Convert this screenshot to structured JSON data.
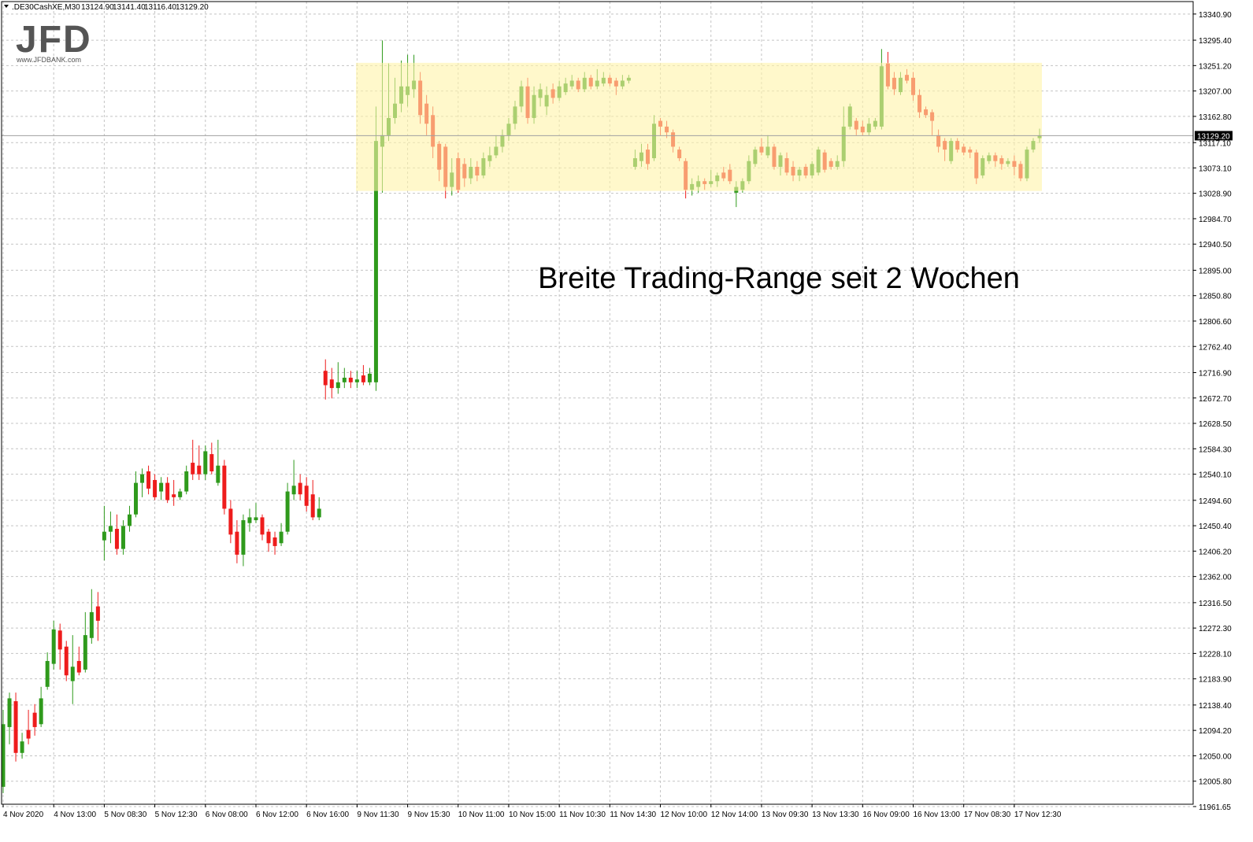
{
  "header": {
    "symbol": ".DE30CashXE,M30",
    "ohlc": [
      "13124.90",
      "13141.40",
      "13116.40",
      "13129.20"
    ]
  },
  "logo": {
    "text": "JFD",
    "url": "www.JFDBANK.com"
  },
  "chart_data": {
    "type": "candlestick",
    "annotation": "Breite Trading-Range seit 2 Wochen",
    "highlight_range": {
      "low": 13033,
      "high": 13256,
      "color": "#fff3a8"
    },
    "current_price": {
      "value": 13129.2,
      "label": "13129.20"
    },
    "up_color": "#2f9a1c",
    "down_color": "#ee1c1c",
    "grid": true,
    "ylim": [
      11965.7,
      13362.6
    ],
    "yticks": [
      {
        "value": 13340.9,
        "label": "13340.90"
      },
      {
        "value": 13295.4,
        "label": "13295.40"
      },
      {
        "value": 13251.2,
        "label": "13251.20"
      },
      {
        "value": 13207,
        "label": "13207.00"
      },
      {
        "value": 13162.8,
        "label": "13162.80"
      },
      {
        "value": 13117.1,
        "label": "13117.10"
      },
      {
        "value": 13073.1,
        "label": "13073.10"
      },
      {
        "value": 13028.9,
        "label": "13028.90"
      },
      {
        "value": 12984.7,
        "label": "12984.70"
      },
      {
        "value": 12940.5,
        "label": "12940.50"
      },
      {
        "value": 12895,
        "label": "12895.00"
      },
      {
        "value": 12850.8,
        "label": "12850.80"
      },
      {
        "value": 12806.6,
        "label": "12806.60"
      },
      {
        "value": 12762.4,
        "label": "12762.40"
      },
      {
        "value": 12716.9,
        "label": "12716.90"
      },
      {
        "value": 12672.7,
        "label": "12672.70"
      },
      {
        "value": 12628.5,
        "label": "12628.50"
      },
      {
        "value": 12584.3,
        "label": "12584.30"
      },
      {
        "value": 12540.1,
        "label": "12540.10"
      },
      {
        "value": 12494.6,
        "label": "12494.60"
      },
      {
        "value": 12450.4,
        "label": "12450.40"
      },
      {
        "value": 12406.2,
        "label": "12406.20"
      },
      {
        "value": 12362,
        "label": "12362.00"
      },
      {
        "value": 12316.5,
        "label": "12316.50"
      },
      {
        "value": 12272.3,
        "label": "12272.30"
      },
      {
        "value": 12228.1,
        "label": "12228.10"
      },
      {
        "value": 12183.9,
        "label": "12183.90"
      },
      {
        "value": 12138.4,
        "label": "12138.40"
      },
      {
        "value": 12094.2,
        "label": "12094.20"
      },
      {
        "value": 12050,
        "label": "12050.00"
      },
      {
        "value": 12005.8,
        "label": "12005.80"
      },
      {
        "value": 11961.65,
        "label": "11961.65"
      }
    ],
    "categories": [
      "4 Nov 2020",
      null,
      null,
      null,
      null,
      null,
      null,
      null,
      "4 Nov 13:00",
      null,
      null,
      null,
      null,
      null,
      null,
      null,
      "5 Nov 08:30",
      null,
      null,
      null,
      null,
      null,
      null,
      null,
      "5 Nov 12:30",
      null,
      null,
      null,
      null,
      null,
      null,
      null,
      "6 Nov 08:00",
      null,
      null,
      null,
      null,
      null,
      null,
      null,
      "6 Nov 12:00",
      null,
      null,
      null,
      null,
      null,
      null,
      null,
      "6 Nov 16:00",
      null,
      null,
      null,
      null,
      null,
      null,
      null,
      "9 Nov 11:30",
      null,
      null,
      null,
      null,
      null,
      null,
      null,
      "9 Nov 15:30",
      null,
      null,
      null,
      null,
      null,
      null,
      null,
      "10 Nov 11:00",
      null,
      null,
      null,
      null,
      null,
      null,
      null,
      "10 Nov 15:00",
      null,
      null,
      null,
      null,
      null,
      null,
      null,
      "11 Nov 10:30",
      null,
      null,
      null,
      null,
      null,
      null,
      null,
      "11 Nov 14:30",
      null,
      null,
      null,
      null,
      null,
      null,
      null,
      "12 Nov 10:00",
      null,
      null,
      null,
      null,
      null,
      null,
      null,
      "12 Nov 14:00",
      null,
      null,
      null,
      null,
      null,
      null,
      null,
      "13 Nov 09:30",
      null,
      null,
      null,
      null,
      null,
      null,
      null,
      "13 Nov 13:30",
      null,
      null,
      null,
      null,
      null,
      null,
      null,
      "16 Nov 09:00",
      null,
      null,
      null,
      null,
      null,
      null,
      null,
      "16 Nov 13:00",
      null,
      null,
      null,
      null,
      null,
      null,
      null,
      "17 Nov 08:30",
      null,
      null,
      null,
      null,
      null,
      null,
      null,
      "17 Nov 12:30",
      null,
      null,
      null,
      null
    ],
    "open": [
      11996,
      12100,
      12145,
      12055,
      12095,
      12125,
      12105,
      12170,
      12210,
      12268,
      12240,
      12180,
      12215,
      12200,
      12255,
      12310,
      12425,
      12440,
      12445,
      12410,
      12450,
      12470,
      12525,
      12545,
      12530,
      12510,
      12525,
      12505,
      12500,
      12510,
      12560,
      12555,
      12540,
      12575,
      12525,
      12555,
      12480,
      12440,
      12400,
      12455,
      12460,
      12465,
      12440,
      12430,
      12420,
      12440,
      12505,
      12525,
      12520,
      12505,
      12465,
      12720,
      12705,
      12690,
      12700,
      12708,
      12700,
      12712,
      12700,
      12700,
      13110,
      13130,
      13160,
      13185,
      13200,
      13210,
      13225,
      13185,
      13165,
      13115,
      13110,
      13040,
      13090,
      13080,
      13055,
      13075,
      13060,
      13085,
      13095,
      13110,
      13130,
      13150,
      13180,
      13215,
      13160,
      13195,
      13180,
      13210,
      13195,
      13205,
      13215,
      13225,
      13210,
      13230,
      13215,
      13220,
      13230,
      13225,
      13215,
      13225,
      13075,
      13085,
      13105,
      13090,
      13155,
      13145,
      13135,
      13105,
      13085,
      13035,
      13040,
      13050,
      13045,
      13050,
      13065,
      13070,
      13030,
      13035,
      13050,
      13080,
      13110,
      13095,
      13110,
      13075,
      13090,
      13075,
      13060,
      13075,
      13060,
      13065,
      13100,
      13085,
      13075,
      13085,
      13145,
      13155,
      13145,
      13135,
      13145,
      13145,
      13255,
      13230,
      13205,
      13235,
      13230,
      13200,
      13175,
      13170,
      13130,
      13120,
      13085,
      13120,
      13110,
      13105,
      13100,
      13060,
      13085,
      13095,
      13090,
      13080,
      13085,
      13080,
      13055,
      13105,
      13124.9
    ],
    "high": [
      12130,
      12160,
      12160,
      12090,
      12130,
      12140,
      12170,
      12230,
      12285,
      12280,
      12250,
      12260,
      12240,
      12300,
      12340,
      12335,
      12485,
      12475,
      12470,
      12460,
      12485,
      12545,
      12550,
      12555,
      12540,
      12535,
      12535,
      12530,
      12515,
      12555,
      12600,
      12590,
      12590,
      12595,
      12600,
      12565,
      12495,
      12460,
      12470,
      12480,
      12490,
      12470,
      12445,
      12440,
      12455,
      12525,
      12565,
      12540,
      12535,
      12530,
      12500,
      12740,
      12725,
      12735,
      12725,
      12720,
      12720,
      12730,
      12725,
      13180,
      13295,
      13255,
      13230,
      13260,
      13270,
      13270,
      13240,
      13200,
      13180,
      13120,
      13115,
      13090,
      13100,
      13090,
      13090,
      13085,
      13100,
      13110,
      13130,
      13140,
      13160,
      13190,
      13225,
      13230,
      13215,
      13220,
      13215,
      13220,
      13225,
      13230,
      13235,
      13230,
      13240,
      13235,
      13245,
      13240,
      13235,
      13230,
      13235,
      13235,
      13105,
      13115,
      13115,
      13165,
      13160,
      13155,
      13140,
      13110,
      13090,
      13055,
      13060,
      13055,
      13070,
      13065,
      13075,
      13080,
      13050,
      13055,
      13095,
      13110,
      13125,
      13130,
      13115,
      13100,
      13100,
      13085,
      13075,
      13080,
      13085,
      13110,
      13105,
      13090,
      13095,
      13180,
      13185,
      13160,
      13155,
      13160,
      13160,
      13280,
      13275,
      13240,
      13240,
      13245,
      13240,
      13210,
      13180,
      13175,
      13140,
      13125,
      13125,
      13125,
      13115,
      13110,
      13105,
      13095,
      13100,
      13100,
      13095,
      13090,
      13095,
      13085,
      13110,
      13125,
      13141.4
    ],
    "low": [
      11985,
      12070,
      12040,
      12045,
      12070,
      12085,
      12100,
      12165,
      12200,
      12200,
      12180,
      12140,
      12190,
      12195,
      12245,
      12250,
      12390,
      12420,
      12400,
      12400,
      12440,
      12465,
      12500,
      12505,
      12495,
      12495,
      12490,
      12485,
      12495,
      12505,
      12530,
      12530,
      12530,
      12540,
      12520,
      12470,
      12420,
      12385,
      12380,
      12440,
      12455,
      12425,
      12405,
      12400,
      12415,
      12435,
      12495,
      12495,
      12475,
      12460,
      12460,
      12670,
      12672,
      12680,
      12690,
      12690,
      12690,
      12695,
      12695,
      12685,
      13030,
      13120,
      13150,
      13170,
      13180,
      13195,
      13150,
      13130,
      13090,
      13050,
      13020,
      13025,
      13030,
      13040,
      13045,
      13050,
      13055,
      13075,
      13090,
      13100,
      13120,
      13140,
      13170,
      13150,
      13150,
      13180,
      13165,
      13185,
      13190,
      13200,
      13210,
      13205,
      13205,
      13210,
      13210,
      13215,
      13215,
      13200,
      13210,
      13220,
      13070,
      13075,
      13070,
      13085,
      13130,
      13125,
      13100,
      13085,
      13020,
      13025,
      13030,
      13035,
      13040,
      13040,
      13050,
      13045,
      13005,
      13030,
      13045,
      13075,
      13095,
      13090,
      13070,
      13060,
      13060,
      13050,
      13050,
      13055,
      13055,
      13060,
      13065,
      13070,
      13070,
      13075,
      13140,
      13130,
      13130,
      13130,
      13140,
      13140,
      13210,
      13200,
      13200,
      13220,
      13190,
      13160,
      13160,
      13130,
      13100,
      13085,
      13080,
      13100,
      13095,
      13090,
      13045,
      13055,
      13080,
      13075,
      13070,
      13075,
      13060,
      13050,
      13050,
      13100,
      13116.4
    ],
    "close": [
      12105,
      12150,
      12055,
      12075,
      12080,
      12100,
      12150,
      12215,
      12270,
      12235,
      12190,
      12205,
      12195,
      12260,
      12300,
      12285,
      12440,
      12450,
      12410,
      12450,
      12470,
      12525,
      12540,
      12515,
      12500,
      12525,
      12495,
      12500,
      12510,
      12545,
      12540,
      12540,
      12580,
      12545,
      12555,
      12480,
      12435,
      12400,
      12460,
      12465,
      12465,
      12435,
      12420,
      12415,
      12440,
      12510,
      12520,
      12505,
      12485,
      12465,
      12480,
      12695,
      12690,
      12700,
      12708,
      12700,
      12705,
      12700,
      12715,
      13120,
      13130,
      13160,
      13185,
      13215,
      13215,
      13225,
      13165,
      13150,
      13110,
      13070,
      13040,
      13065,
      13035,
      13055,
      13075,
      13060,
      13090,
      13095,
      13110,
      13130,
      13150,
      13180,
      13215,
      13160,
      13200,
      13210,
      13200,
      13195,
      13215,
      13220,
      13225,
      13210,
      13230,
      13215,
      13225,
      13230,
      13220,
      13215,
      13225,
      13230,
      13090,
      13100,
      13080,
      13150,
      13145,
      13135,
      13110,
      13090,
      13035,
      13045,
      13050,
      13045,
      13050,
      13060,
      13055,
      13050,
      13040,
      13050,
      13085,
      13105,
      13100,
      13110,
      13075,
      13095,
      13065,
      13060,
      13070,
      13060,
      13080,
      13105,
      13070,
      13075,
      13085,
      13145,
      13180,
      13140,
      13135,
      13150,
      13155,
      13250,
      13215,
      13210,
      13230,
      13225,
      13200,
      13170,
      13165,
      13155,
      13110,
      13105,
      13120,
      13105,
      13100,
      13100,
      13055,
      13090,
      13095,
      13085,
      13080,
      13085,
      13075,
      13055,
      13105,
      13120,
      13129.2
    ]
  }
}
